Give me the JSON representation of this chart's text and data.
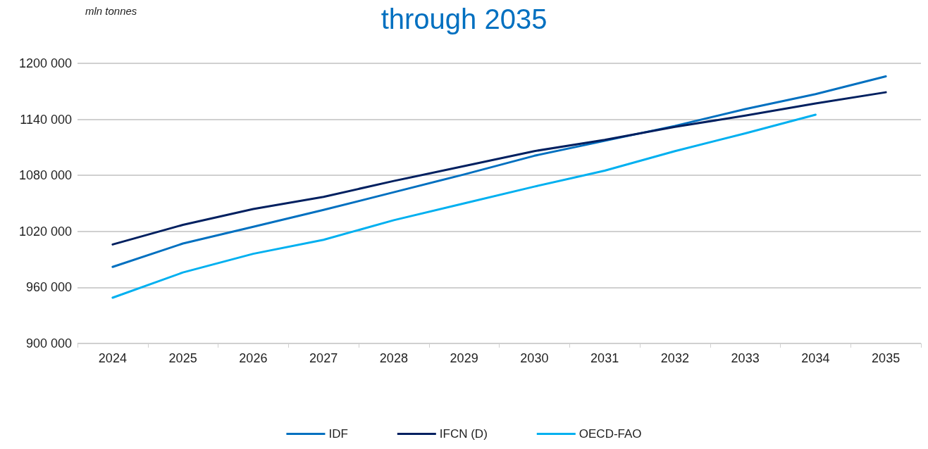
{
  "chart_data": {
    "type": "line",
    "title": "through 2035",
    "ylabel": "mln tonnes",
    "categories": [
      "2024",
      "2025",
      "2026",
      "2027",
      "2028",
      "2029",
      "2030",
      "2031",
      "2032",
      "2033",
      "2034",
      "2035"
    ],
    "series": [
      {
        "name": "IDF",
        "color": "#0070c0",
        "values": [
          982000,
          1007000,
          1025000,
          1043000,
          1062000,
          1081000,
          1101000,
          1117000,
          1133000,
          1151000,
          1167000,
          1186000
        ]
      },
      {
        "name": "IFCN (D)",
        "color": "#002060",
        "values": [
          1006000,
          1027000,
          1044000,
          1057000,
          1074000,
          1090000,
          1106000,
          1118000,
          1132000,
          1144000,
          1157000,
          1169000
        ]
      },
      {
        "name": "OECD-FAO",
        "color": "#00b0f0",
        "values": [
          949000,
          976000,
          996000,
          1011000,
          1032000,
          1050000,
          1068000,
          1085000,
          1106000,
          1125000,
          1145000,
          null
        ]
      }
    ],
    "ylim": [
      900000,
      1200000
    ],
    "yticks": [
      {
        "value": 900000,
        "label": "900 000"
      },
      {
        "value": 960000,
        "label": "960 000"
      },
      {
        "value": 1020000,
        "label": "1020 000"
      },
      {
        "value": 1080000,
        "label": "1080 000"
      },
      {
        "value": 1140000,
        "label": "1140 000"
      },
      {
        "value": 1200000,
        "label": "1200 000"
      }
    ],
    "grid": "y",
    "legend": "bottom",
    "marker": "none",
    "line_style": "solid"
  }
}
